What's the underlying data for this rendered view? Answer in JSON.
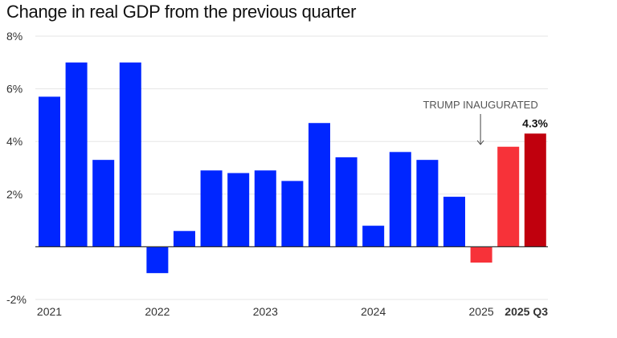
{
  "chart_data": {
    "type": "bar",
    "title": "Change in real GDP from the previous quarter",
    "categories": [
      "2021 Q1",
      "2021 Q2",
      "2021 Q3",
      "2021 Q4",
      "2022 Q1",
      "2022 Q2",
      "2022 Q3",
      "2022 Q4",
      "2023 Q1",
      "2023 Q2",
      "2023 Q3",
      "2023 Q4",
      "2024 Q1",
      "2024 Q2",
      "2024 Q3",
      "2024 Q4",
      "2025 Q1",
      "2025 Q2",
      "2025 Q3"
    ],
    "values": [
      5.7,
      7.0,
      3.3,
      7.0,
      -1.0,
      0.6,
      2.9,
      2.8,
      2.9,
      2.5,
      4.7,
      3.4,
      0.8,
      3.6,
      3.3,
      1.9,
      -0.6,
      3.8,
      4.3
    ],
    "bar_colors": [
      "#0026ff",
      "#0026ff",
      "#0026ff",
      "#0026ff",
      "#0026ff",
      "#0026ff",
      "#0026ff",
      "#0026ff",
      "#0026ff",
      "#0026ff",
      "#0026ff",
      "#0026ff",
      "#0026ff",
      "#0026ff",
      "#0026ff",
      "#0026ff",
      "#f73239",
      "#f73239",
      "#c0000d"
    ],
    "ylim": [
      -2,
      8
    ],
    "y_ticks": [
      {
        "value": 8,
        "label": "8%"
      },
      {
        "value": 6,
        "label": "6%"
      },
      {
        "value": 4,
        "label": "4%"
      },
      {
        "value": 2,
        "label": "2%"
      },
      {
        "value": -2,
        "label": "-2%"
      }
    ],
    "x_tick_labels": [
      {
        "index": 0,
        "label": "2021"
      },
      {
        "index": 4,
        "label": "2022"
      },
      {
        "index": 8,
        "label": "2023"
      },
      {
        "index": 12,
        "label": "2024"
      },
      {
        "index": 16,
        "label": "2025"
      },
      {
        "index": 18,
        "label": "2025 Q3",
        "bold": true
      }
    ],
    "grid": true,
    "annotations": [
      {
        "text": "TRUMP INAUGURATED",
        "index": 16,
        "arrow": true
      },
      {
        "text": "4.3%",
        "index": 18,
        "bold": true
      }
    ]
  }
}
